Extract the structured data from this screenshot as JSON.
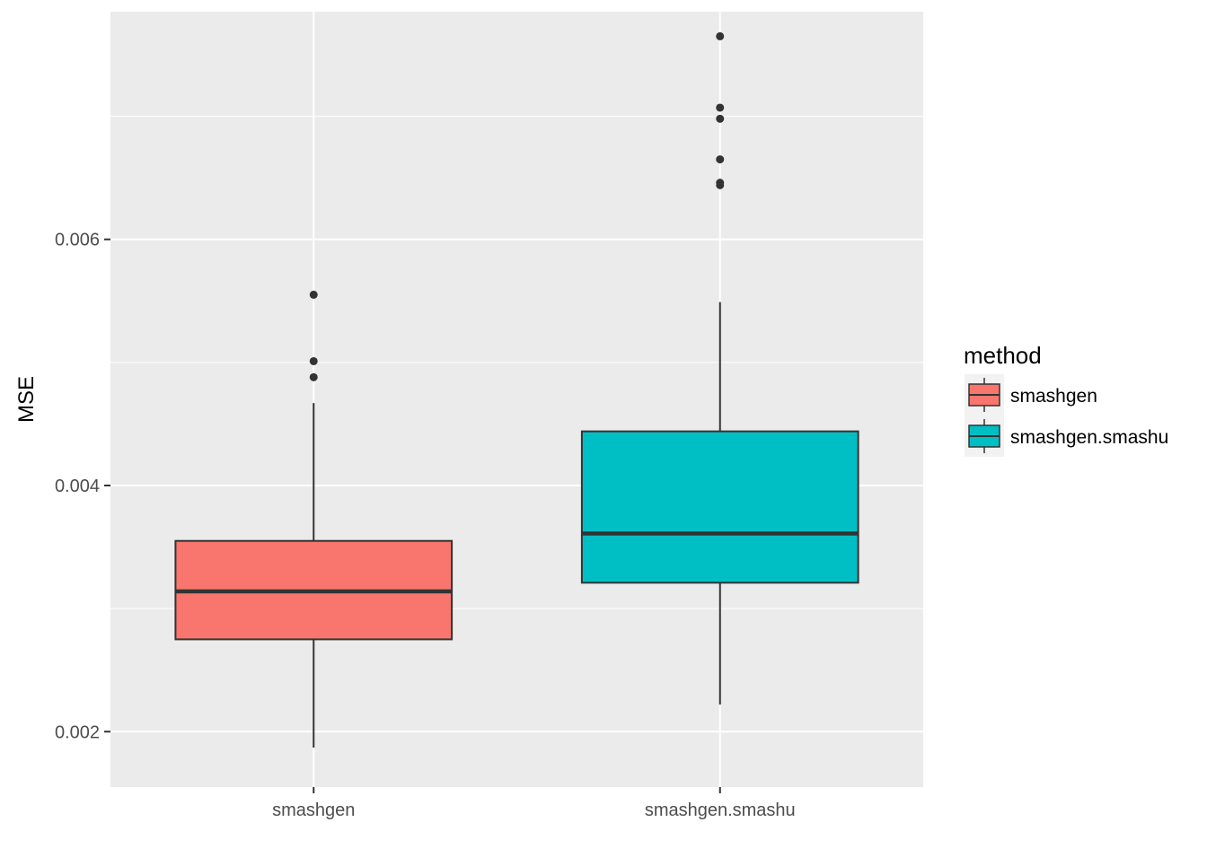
{
  "chart_data": {
    "type": "boxplot",
    "title": "",
    "xlabel": "",
    "ylabel": "MSE",
    "ylim": [
      0.00155,
      0.00785
    ],
    "y_ticks": [
      "0.002",
      "0.004",
      "0.006"
    ],
    "y_tick_values": [
      0.002,
      0.004,
      0.006
    ],
    "y_minor_values": [
      0.003,
      0.005,
      0.007
    ],
    "grid": true,
    "legend": {
      "title": "method",
      "placement": "right",
      "entries": [
        "smashgen",
        "smashgen.smashu"
      ]
    },
    "categories": [
      "smashgen",
      "smashgen.smashu"
    ],
    "series": [
      {
        "name": "smashgen",
        "color": "#F8766D",
        "whisker_low": 0.00187,
        "q1": 0.00275,
        "median": 0.00314,
        "q3": 0.00355,
        "whisker_high": 0.00467,
        "outliers": [
          0.00555,
          0.00501,
          0.00488
        ]
      },
      {
        "name": "smashgen.smashu",
        "color": "#00BFC4",
        "whisker_low": 0.00222,
        "q1": 0.00321,
        "median": 0.00361,
        "q3": 0.00444,
        "whisker_high": 0.00549,
        "outliers": [
          0.00765,
          0.00707,
          0.00698,
          0.00665,
          0.00646,
          0.00644
        ]
      }
    ]
  }
}
